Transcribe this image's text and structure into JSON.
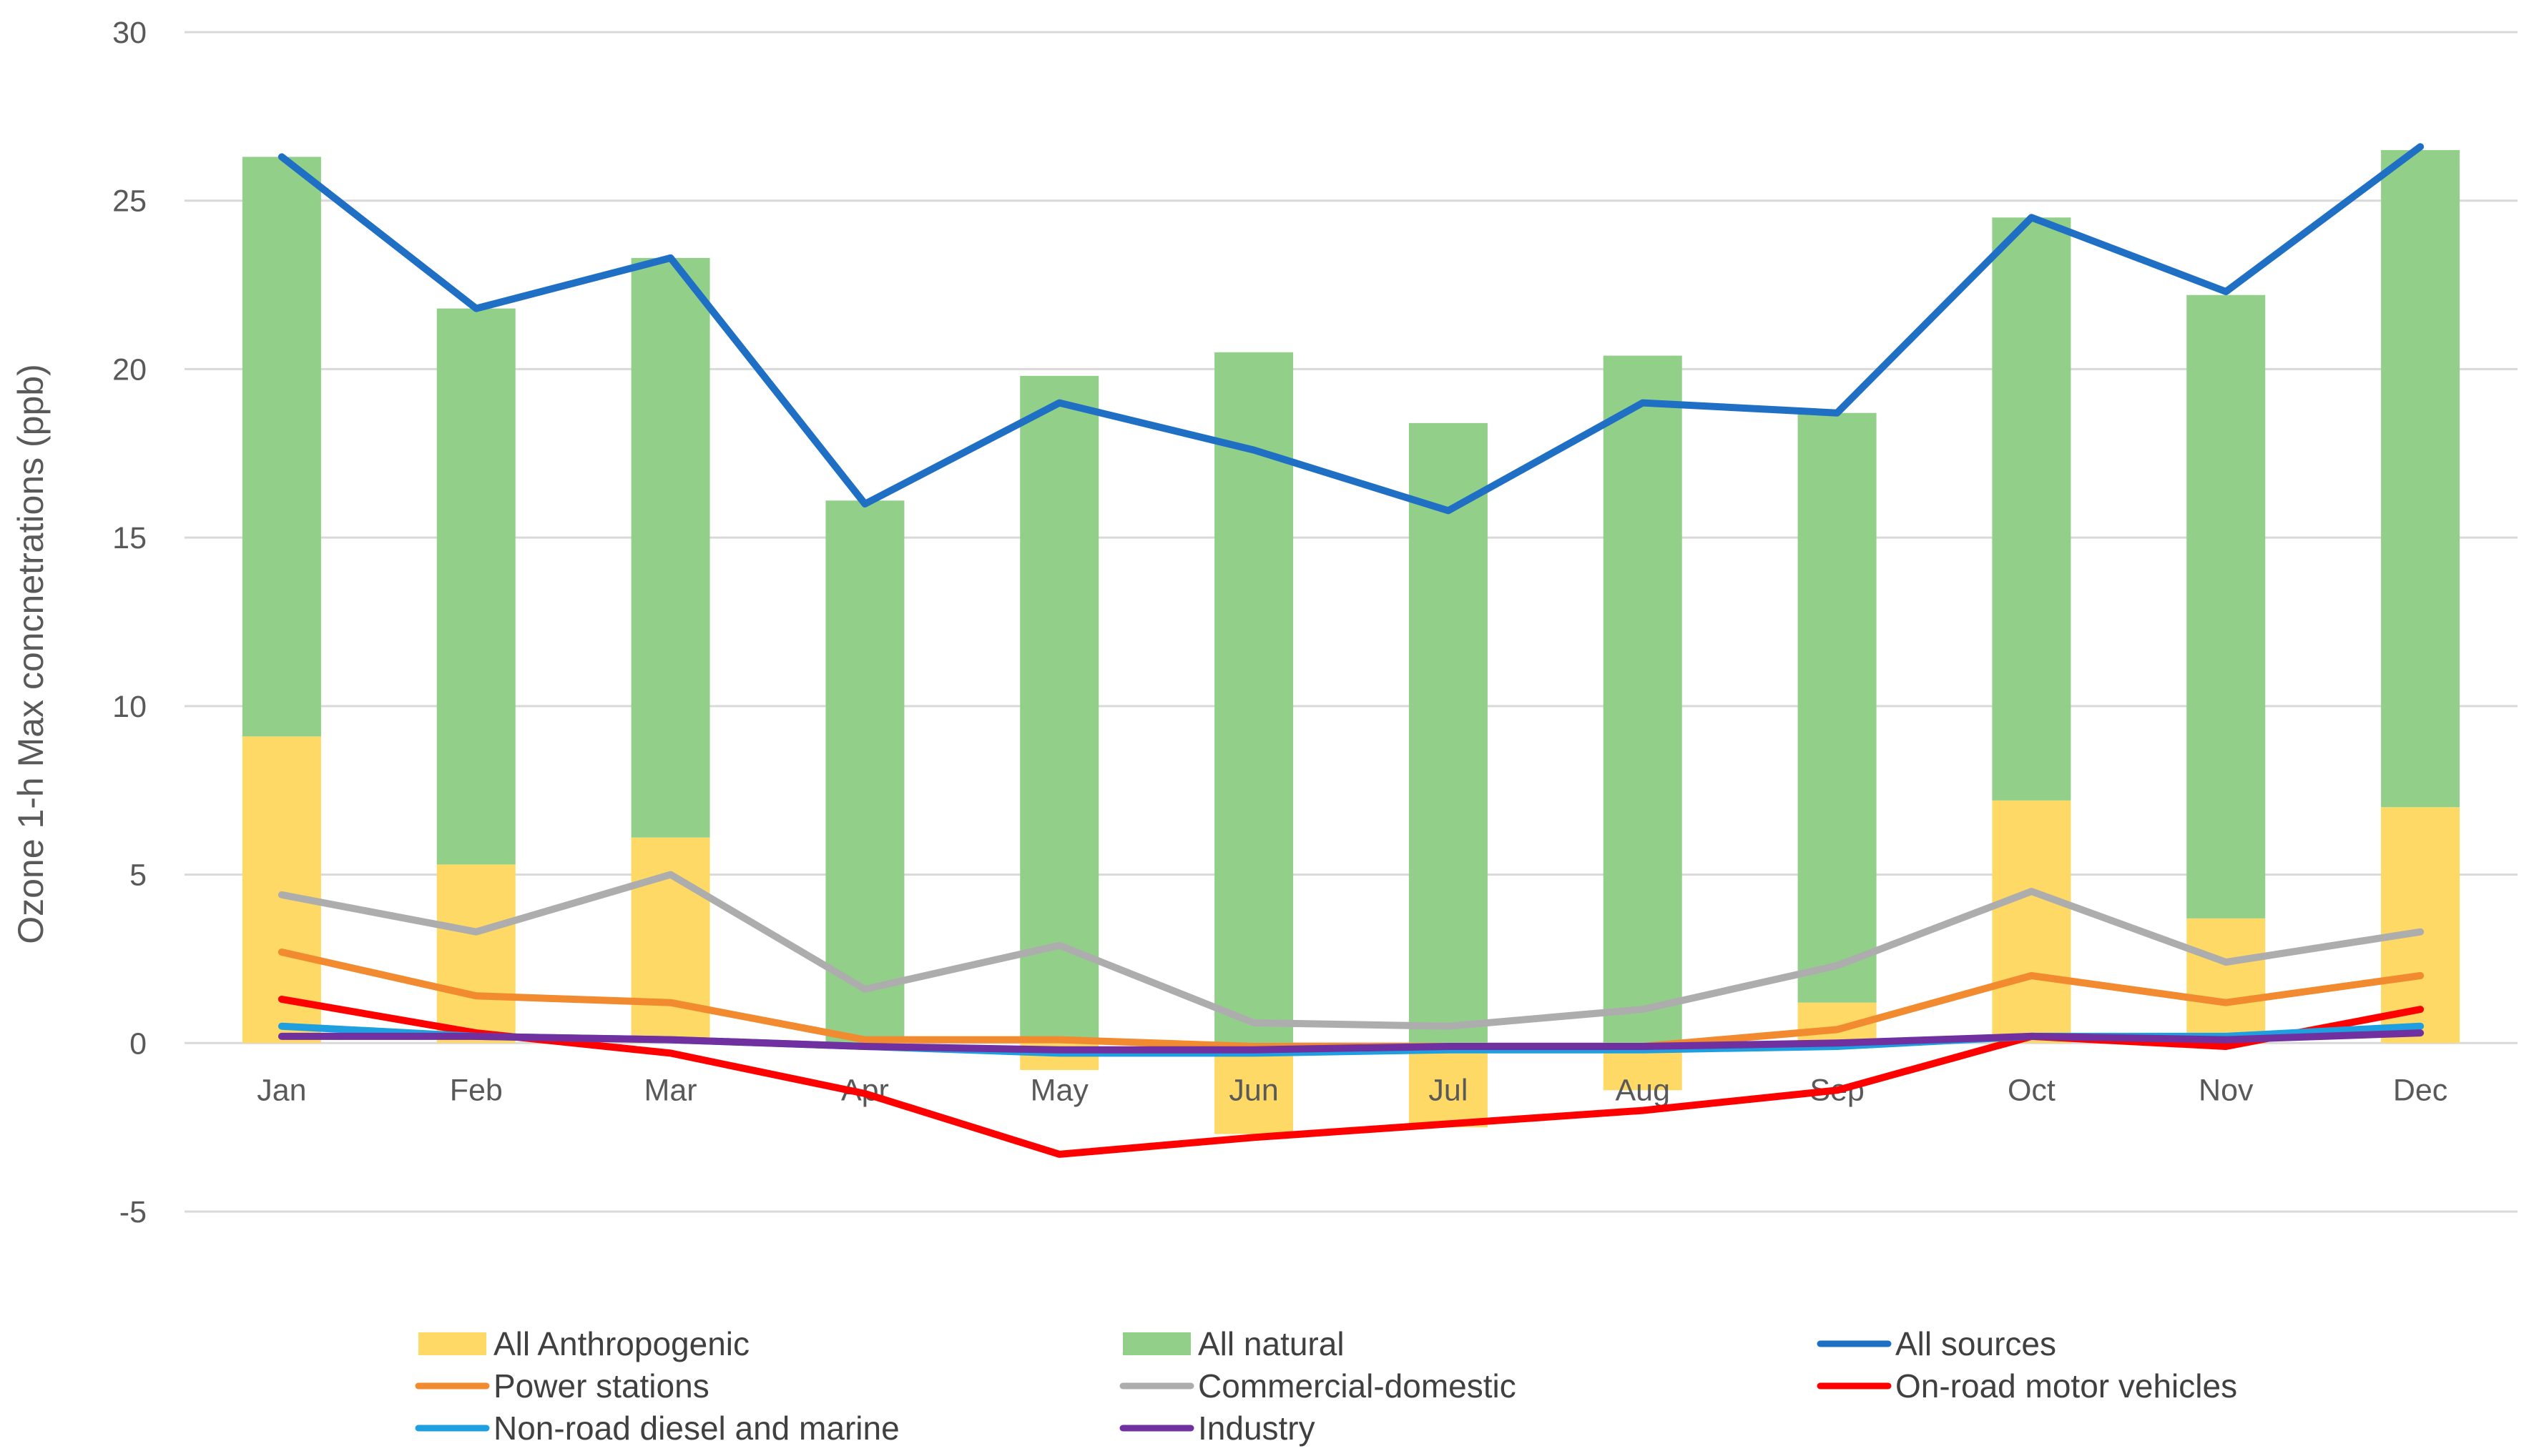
{
  "chart_data": {
    "type": "bar",
    "title": "",
    "xlabel": "",
    "ylabel": "Ozone 1-h Max concnetrations (ppb)",
    "ylim": [
      -5,
      30
    ],
    "yticks": [
      -5,
      0,
      5,
      10,
      15,
      20,
      25,
      30
    ],
    "grid": true,
    "legend_position": "bottom",
    "categories": [
      "Jan",
      "Feb",
      "Mar",
      "Apr",
      "May",
      "Jun",
      "Jul",
      "Aug",
      "Sep",
      "Oct",
      "Nov",
      "Dec"
    ],
    "stacked_bars": [
      {
        "name": "All Anthropogenic",
        "color": "#FFD966",
        "values": [
          9.1,
          5.3,
          6.1,
          0.0,
          -0.8,
          -2.7,
          -2.5,
          -1.4,
          1.2,
          7.2,
          3.7,
          7.0
        ]
      },
      {
        "name": "All natural",
        "color": "#92D08A",
        "values": [
          17.2,
          16.5,
          17.2,
          16.1,
          19.8,
          20.5,
          18.4,
          20.4,
          17.5,
          17.3,
          18.5,
          19.5
        ]
      }
    ],
    "series": [
      {
        "name": "All sources",
        "color": "#1F6FC5",
        "values": [
          26.3,
          21.8,
          23.3,
          16.0,
          19.0,
          17.6,
          15.8,
          19.0,
          18.7,
          24.5,
          22.3,
          26.6
        ]
      },
      {
        "name": "Power stations",
        "color": "#F28A30",
        "values": [
          2.7,
          1.4,
          1.2,
          0.1,
          0.1,
          -0.1,
          -0.1,
          -0.1,
          0.4,
          2.0,
          1.2,
          2.0
        ]
      },
      {
        "name": "Commercial-domestic",
        "color": "#ADADAD",
        "values": [
          4.4,
          3.3,
          5.0,
          1.6,
          2.9,
          0.6,
          0.5,
          1.0,
          2.3,
          4.5,
          2.4,
          3.3
        ]
      },
      {
        "name": "On-road motor vehicles",
        "color": "#FF0000",
        "values": [
          1.3,
          0.3,
          -0.3,
          -1.5,
          -3.3,
          -2.8,
          -2.4,
          -2.0,
          -1.4,
          0.2,
          -0.1,
          1.0
        ]
      },
      {
        "name": "Non-road diesel and marine",
        "color": "#1E9FE0",
        "values": [
          0.5,
          0.2,
          0.1,
          -0.1,
          -0.3,
          -0.3,
          -0.2,
          -0.2,
          -0.1,
          0.2,
          0.2,
          0.5
        ]
      },
      {
        "name": "Industry",
        "color": "#7030A0",
        "values": [
          0.2,
          0.2,
          0.1,
          -0.1,
          -0.2,
          -0.2,
          -0.1,
          -0.1,
          0.0,
          0.2,
          0.1,
          0.3
        ]
      }
    ],
    "legend": [
      {
        "label": "All Anthropogenic",
        "kind": "bar",
        "color": "#FFD966"
      },
      {
        "label": "All natural",
        "kind": "bar",
        "color": "#92D08A"
      },
      {
        "label": "All sources",
        "kind": "line",
        "color": "#1F6FC5"
      },
      {
        "label": "Power stations",
        "kind": "line",
        "color": "#F28A30"
      },
      {
        "label": "Commercial-domestic",
        "kind": "line",
        "color": "#ADADAD"
      },
      {
        "label": "On-road motor vehicles",
        "kind": "line",
        "color": "#FF0000"
      },
      {
        "label": "Non-road diesel and marine",
        "kind": "line",
        "color": "#1E9FE0"
      },
      {
        "label": "Industry",
        "kind": "line",
        "color": "#7030A0"
      }
    ]
  }
}
